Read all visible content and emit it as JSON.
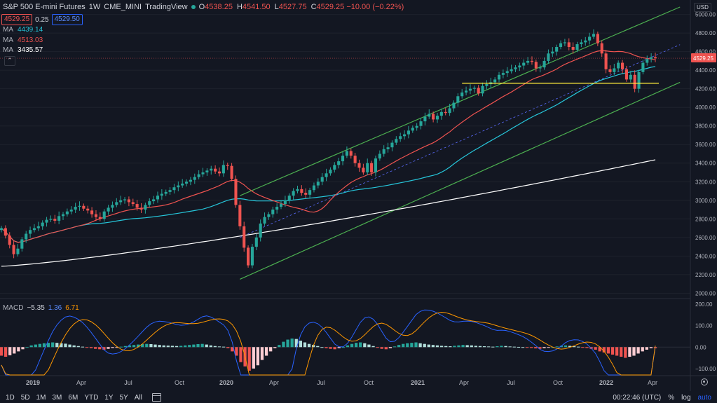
{
  "header": {
    "symbol_title": "S&P 500 E-mini Futures",
    "interval": "1W",
    "exchange": "CME_MINI",
    "source": "TradingView",
    "ohlc": [
      {
        "key": "O",
        "value": "4538.25"
      },
      {
        "key": "H",
        "value": "4541.50"
      },
      {
        "key": "L",
        "value": "4527.75"
      },
      {
        "key": "C",
        "value": "4529.25 −10.00 (−0.22%)"
      }
    ]
  },
  "trade_box": {
    "sell": "4529.25",
    "spread": "0.25",
    "buy": "4529.50"
  },
  "moving_averages": [
    {
      "label": "MA",
      "value": "4439.14",
      "color": "#26c6da"
    },
    {
      "label": "MA",
      "value": "4513.03",
      "color": "#ef5350"
    },
    {
      "label": "MA",
      "value": "3435.57",
      "color": "#ffffff"
    }
  ],
  "currency": "USD",
  "price_axis": {
    "ticks": [
      "5000.00",
      "4800.00",
      "4600.00",
      "4400.00",
      "4200.00",
      "4000.00",
      "3800.00",
      "3600.00",
      "3400.00",
      "3200.00",
      "3000.00",
      "2800.00",
      "2600.00",
      "2400.00",
      "2200.00",
      "2000.00"
    ],
    "last_price": "4529.25"
  },
  "macd": {
    "label": "MACD",
    "hist_value": "−5.35",
    "macd_value": "1.36",
    "signal_value": "6.71",
    "ticks": [
      "200.00",
      "100.00",
      "0.00",
      "−100.00"
    ]
  },
  "time_axis": [
    {
      "label": "2019",
      "bold": true
    },
    {
      "label": "Apr",
      "bold": false
    },
    {
      "label": "Jul",
      "bold": false
    },
    {
      "label": "Oct",
      "bold": false
    },
    {
      "label": "2020",
      "bold": true
    },
    {
      "label": "Apr",
      "bold": false
    },
    {
      "label": "Jul",
      "bold": false
    },
    {
      "label": "Oct",
      "bold": false
    },
    {
      "label": "2021",
      "bold": true
    },
    {
      "label": "Apr",
      "bold": false
    },
    {
      "label": "Jul",
      "bold": false
    },
    {
      "label": "Oct",
      "bold": false
    },
    {
      "label": "2022",
      "bold": true
    },
    {
      "label": "Apr",
      "bold": false
    }
  ],
  "bottom_toolbar": {
    "ranges": [
      "1D",
      "5D",
      "1M",
      "3M",
      "6M",
      "YTD",
      "1Y",
      "5Y",
      "All"
    ],
    "clock": "00:22:46 (UTC)",
    "percent": "%",
    "log": "log",
    "auto": "auto"
  },
  "colors": {
    "up": "#26a69a",
    "down": "#ef5350",
    "ma20": "#ef5350",
    "ma50": "#26c6da",
    "ma200": "#ffffff",
    "channel": "#4caf50",
    "support": "#ffeb3b",
    "macd_line": "#2962ff",
    "signal_line": "#ff9800"
  },
  "chart_data": {
    "type": "candlestick",
    "title": "S&P 500 E-mini Futures · 1W · CME_MINI",
    "ylim": [
      1950,
      5080
    ],
    "weekly_close": [
      2700,
      2620,
      2520,
      2420,
      2480,
      2580,
      2640,
      2680,
      2700,
      2720,
      2760,
      2790,
      2800,
      2780,
      2830,
      2850,
      2880,
      2900,
      2930,
      2940,
      2910,
      2890,
      2850,
      2820,
      2800,
      2880,
      2920,
      2950,
      2980,
      3000,
      3010,
      2980,
      2960,
      2920,
      2900,
      2950,
      2990,
      3010,
      3050,
      3070,
      3090,
      3110,
      3140,
      3160,
      3180,
      3200,
      3220,
      3250,
      3280,
      3300,
      3320,
      3340,
      3310,
      3290,
      3380,
      3370,
      3230,
      2950,
      2720,
      2490,
      2300,
      2500,
      2600,
      2750,
      2820,
      2850,
      2900,
      2930,
      2960,
      3000,
      3050,
      3100,
      3120,
      3080,
      3060,
      3110,
      3160,
      3200,
      3250,
      3290,
      3330,
      3380,
      3420,
      3480,
      3530,
      3480,
      3400,
      3350,
      3300,
      3400,
      3300,
      3450,
      3500,
      3550,
      3570,
      3620,
      3660,
      3690,
      3710,
      3750,
      3780,
      3800,
      3850,
      3900,
      3930,
      3870,
      3910,
      3950,
      3940,
      3990,
      4050,
      4120,
      4160,
      4180,
      4200,
      4210,
      4150,
      4230,
      4250,
      4270,
      4300,
      4350,
      4370,
      4390,
      4410,
      4430,
      4450,
      4480,
      4500,
      4490,
      4420,
      4430,
      4500,
      4580,
      4600,
      4650,
      4690,
      4700,
      4650,
      4620,
      4680,
      4700,
      4720,
      4760,
      4790,
      4690,
      4580,
      4410,
      4380,
      4420,
      4480,
      4410,
      4300,
      4350,
      4200,
      4380,
      4480,
      4520,
      4540,
      4529
    ],
    "ma_200_end": 3435.57,
    "ma_50_end": 4439.14,
    "ma_20_end": 4513.03,
    "support_level": 4260,
    "channel_start": {
      "date": "2020-03",
      "lower": 2150,
      "upper": 3050
    },
    "channel_end": {
      "date": "2022-04",
      "lower": 4270,
      "upper": 5080
    },
    "macd_hist": [
      -40,
      -45,
      -38,
      -30,
      -20,
      -10,
      0,
      8,
      12,
      15,
      18,
      20,
      22,
      20,
      18,
      16,
      12,
      8,
      5,
      2,
      -2,
      -5,
      -8,
      -10,
      -12,
      -8,
      -4,
      -1,
      2,
      5,
      8,
      10,
      12,
      14,
      15,
      14,
      12,
      10,
      8,
      7,
      6,
      5,
      6,
      8,
      10,
      12,
      14,
      15,
      12,
      8,
      5,
      3,
      2,
      -5,
      -20,
      -40,
      -70,
      -90,
      -110,
      -100,
      -85,
      -60,
      -40,
      -20,
      -5,
      10,
      25,
      35,
      40,
      38,
      30,
      22,
      15,
      10,
      5,
      0,
      -5,
      -8,
      -10,
      -5,
      0,
      8,
      15,
      20,
      22,
      18,
      12,
      5,
      -2,
      -8,
      -10,
      -5,
      3,
      10,
      15,
      18,
      20,
      22,
      18,
      15,
      12,
      10,
      8,
      6,
      5,
      4,
      6,
      8,
      10,
      9,
      8,
      6,
      5,
      4,
      3,
      2,
      4,
      6,
      5,
      3,
      2,
      1,
      0,
      -2,
      -4,
      -6,
      -8,
      -5,
      -2,
      0,
      3,
      6,
      8,
      6,
      4,
      2,
      -1,
      -4,
      -8,
      -12,
      -20,
      -25,
      -30,
      -35,
      -40,
      -45,
      -50,
      -45,
      -40,
      -30,
      -20,
      -12,
      -5,
      -5
    ],
    "macd_line_end": 1.36,
    "signal_line_end": 6.71
  }
}
